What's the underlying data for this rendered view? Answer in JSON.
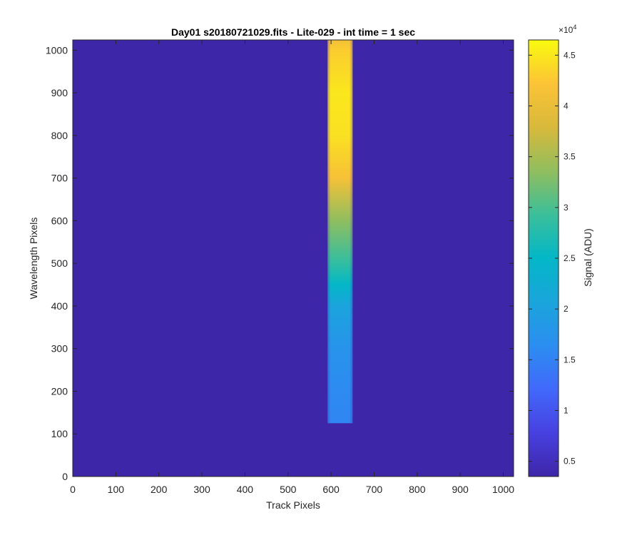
{
  "chart_data": {
    "type": "heatmap",
    "title": "Day01  s20180721029.fits - Lite-029 - int time = 1 sec",
    "xlabel": "Track Pixels",
    "ylabel": "Wavelength Pixels",
    "xlim": [
      0,
      1024
    ],
    "ylim": [
      0,
      1024
    ],
    "xticks": [
      "0",
      "100",
      "200",
      "300",
      "400",
      "500",
      "600",
      "700",
      "800",
      "900",
      "1000"
    ],
    "yticks": [
      "0",
      "100",
      "200",
      "300",
      "400",
      "500",
      "600",
      "700",
      "800",
      "900",
      "1000"
    ],
    "colorbar": {
      "label": "Signal (ADU)",
      "exponent_label": "×10",
      "exponent_power": "4",
      "range": [
        0.35,
        4.65
      ],
      "ticks": [
        "0.5",
        "1",
        "1.5",
        "2",
        "2.5",
        "3",
        "3.5",
        "4",
        "4.5"
      ],
      "colormap": "parula"
    },
    "background_signal": 0.35,
    "band": {
      "x_range": [
        592,
        650
      ],
      "y_range": [
        125,
        1024
      ],
      "profile": [
        {
          "y": 125,
          "signal": 1.55
        },
        {
          "y": 200,
          "signal": 1.6
        },
        {
          "y": 300,
          "signal": 1.75
        },
        {
          "y": 400,
          "signal": 2.05
        },
        {
          "y": 450,
          "signal": 2.5
        },
        {
          "y": 500,
          "signal": 2.85
        },
        {
          "y": 600,
          "signal": 3.35
        },
        {
          "y": 700,
          "signal": 4.15
        },
        {
          "y": 800,
          "signal": 4.45
        },
        {
          "y": 900,
          "signal": 4.5
        },
        {
          "y": 1000,
          "signal": 4.3
        },
        {
          "y": 1024,
          "signal": 4.1
        }
      ]
    }
  }
}
